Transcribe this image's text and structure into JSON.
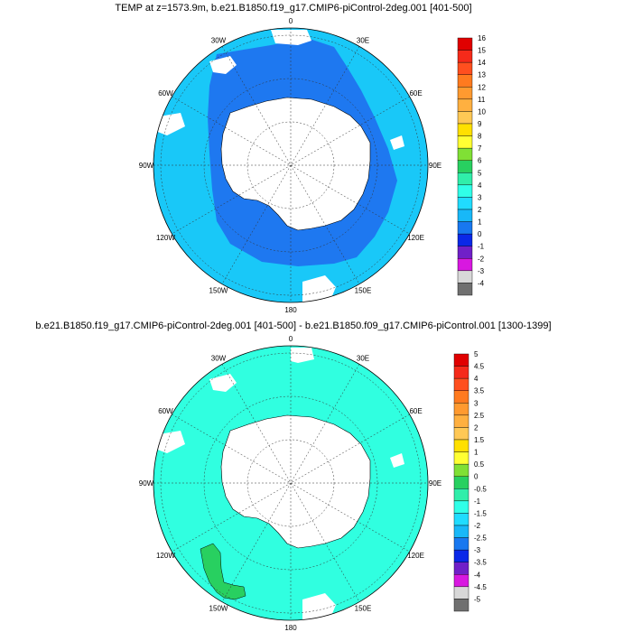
{
  "panels": [
    {
      "title": "TEMP at z=1573.9m, b.e21.B1850.f19_g17.CMIP6-piControl-2deg.001 [401-500]",
      "lon_labels": [
        "0",
        "30E",
        "60E",
        "90E",
        "120E",
        "150E",
        "180",
        "150W",
        "120W",
        "90W",
        "60W",
        "30W"
      ],
      "colorbar_labels": [
        "16",
        "15",
        "14",
        "13",
        "12",
        "11",
        "10",
        "9",
        "8",
        "7",
        "6",
        "5",
        "4",
        "3",
        "2",
        "1",
        "0",
        "-1",
        "-2",
        "-3",
        "-4"
      ],
      "colorbar_colors": [
        "#e00000",
        "#f52a1a",
        "#ff4f1f",
        "#ff7a1f",
        "#ff9a30",
        "#ffb040",
        "#ffc855",
        "#ffe000",
        "#ffff33",
        "#80e035",
        "#28d060",
        "#30eeaa",
        "#30ffe8",
        "#20dcff",
        "#18b8f8",
        "#1878f0",
        "#0a28e8",
        "#7020c8",
        "#d818e0",
        "#d8d8d8",
        "#707070"
      ],
      "ocean_color": "#19c8f8",
      "inner_color": "#1e78f0"
    },
    {
      "title": "b.e21.B1850.f19_g17.CMIP6-piControl-2deg.001 [401-500] - b.e21.B1850.f09_g17.CMIP6-piControl.001 [1300-1399]",
      "lon_labels": [
        "0",
        "30E",
        "60E",
        "90E",
        "120E",
        "150E",
        "180",
        "150W",
        "120W",
        "90W",
        "60W",
        "30W"
      ],
      "colorbar_labels": [
        "5",
        "4.5",
        "4",
        "3.5",
        "3",
        "2.5",
        "2",
        "1.5",
        "1",
        "0.5",
        "0",
        "-0.5",
        "-1",
        "-1.5",
        "-2",
        "-2.5",
        "-3",
        "-3.5",
        "-4",
        "-4.5",
        "-5"
      ],
      "colorbar_colors": [
        "#e00000",
        "#f52a1a",
        "#ff4f1f",
        "#ff7a1f",
        "#ff9a30",
        "#ffb040",
        "#ffc855",
        "#ffe000",
        "#ffff33",
        "#80e035",
        "#28d060",
        "#30eeaa",
        "#30ffe8",
        "#20dcff",
        "#18b8f8",
        "#1878f0",
        "#0a28e8",
        "#7020c8",
        "#d818e0",
        "#d8d8d8",
        "#707070"
      ],
      "ocean_color": "#30ffe0",
      "anomaly_color": "#28d060"
    }
  ]
}
